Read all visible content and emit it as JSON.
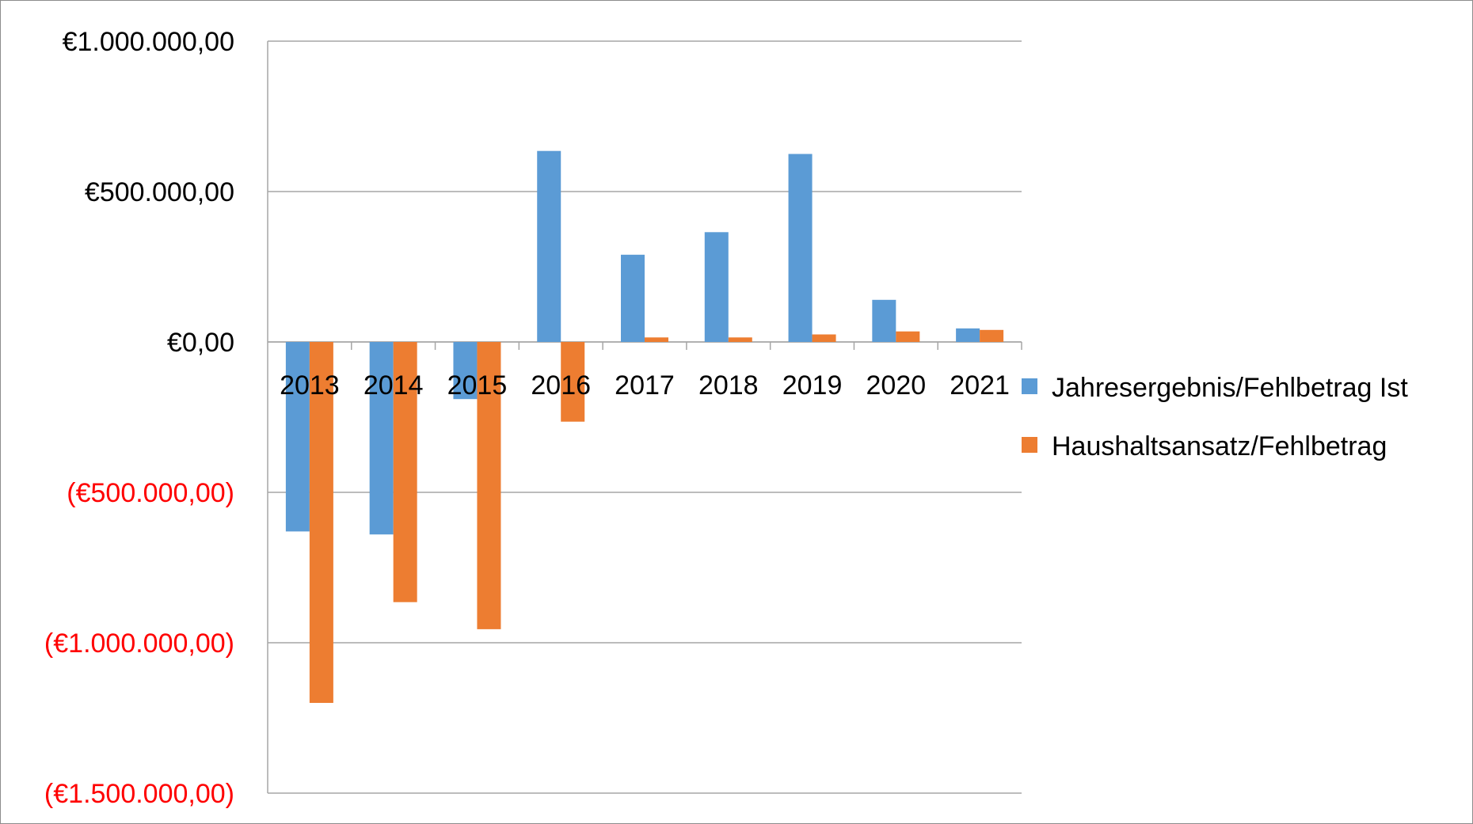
{
  "chart_data": {
    "type": "bar",
    "categories": [
      "2013",
      "2014",
      "2015",
      "2016",
      "2017",
      "2018",
      "2019",
      "2020",
      "2021"
    ],
    "series": [
      {
        "name": "Jahresergebnis/Fehlbetrag Ist",
        "color": "#5b9bd5",
        "values": [
          -630000,
          -640000,
          -190000,
          635000,
          290000,
          365000,
          625000,
          140000,
          45000
        ]
      },
      {
        "name": "Haushaltsansatz/Fehlbetrag",
        "color": "#ed7d31",
        "values": [
          -1200000,
          -865000,
          -955000,
          -265000,
          15000,
          15000,
          25000,
          35000,
          40000
        ]
      }
    ],
    "ylim": [
      -1500000,
      1000000
    ],
    "yticks": [
      1000000,
      500000,
      0,
      -500000,
      -1000000,
      -1500000
    ],
    "ytick_labels": [
      "€1.000.000,00",
      "€500.000,00",
      "€0,00",
      "(€500.000,00)",
      "(€1.000.000,00)",
      "(€1.500.000,00)"
    ],
    "negative_label_color": "#ff0000",
    "grid": true,
    "legend_position": "right",
    "title": "",
    "xlabel": "",
    "ylabel": ""
  }
}
